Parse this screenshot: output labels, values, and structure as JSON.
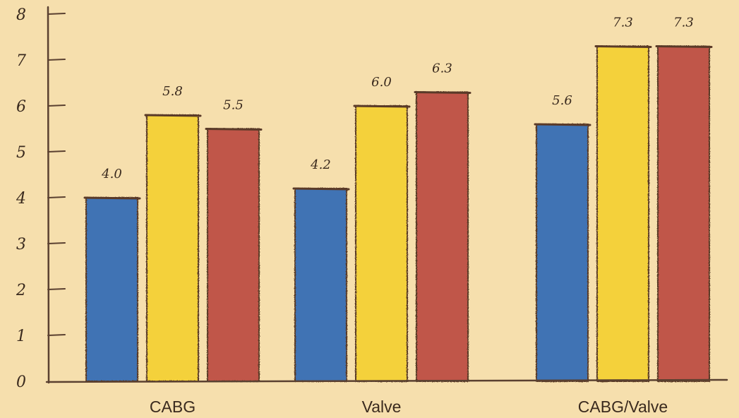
{
  "chart_data": {
    "type": "bar",
    "categories": [
      "CABG",
      "Valve",
      "CABG/Valve"
    ],
    "series": [
      {
        "values": [
          4.0,
          4.2,
          5.6
        ],
        "color": "#3f73b4"
      },
      {
        "values": [
          5.8,
          6.0,
          7.3
        ],
        "color": "#f4d13a"
      },
      {
        "values": [
          5.5,
          6.3,
          7.3
        ],
        "color": "#c0564a"
      }
    ],
    "data_labels": [
      [
        "4.0",
        "4.2",
        "5.6"
      ],
      [
        "5.8",
        "6.0",
        "7.3"
      ],
      [
        "5.5",
        "6.3",
        "7.3"
      ]
    ],
    "y_ticks": [
      "0",
      "1",
      "2",
      "3",
      "4",
      "5",
      "6",
      "7",
      "8"
    ],
    "ylim": [
      0,
      8
    ],
    "grid": false,
    "legend": false,
    "title": "",
    "xlabel": "",
    "ylabel": ""
  },
  "style": {
    "background": "#f6dfad",
    "axis_color": "#5a4030",
    "bar_outline": "#5a3a28"
  }
}
